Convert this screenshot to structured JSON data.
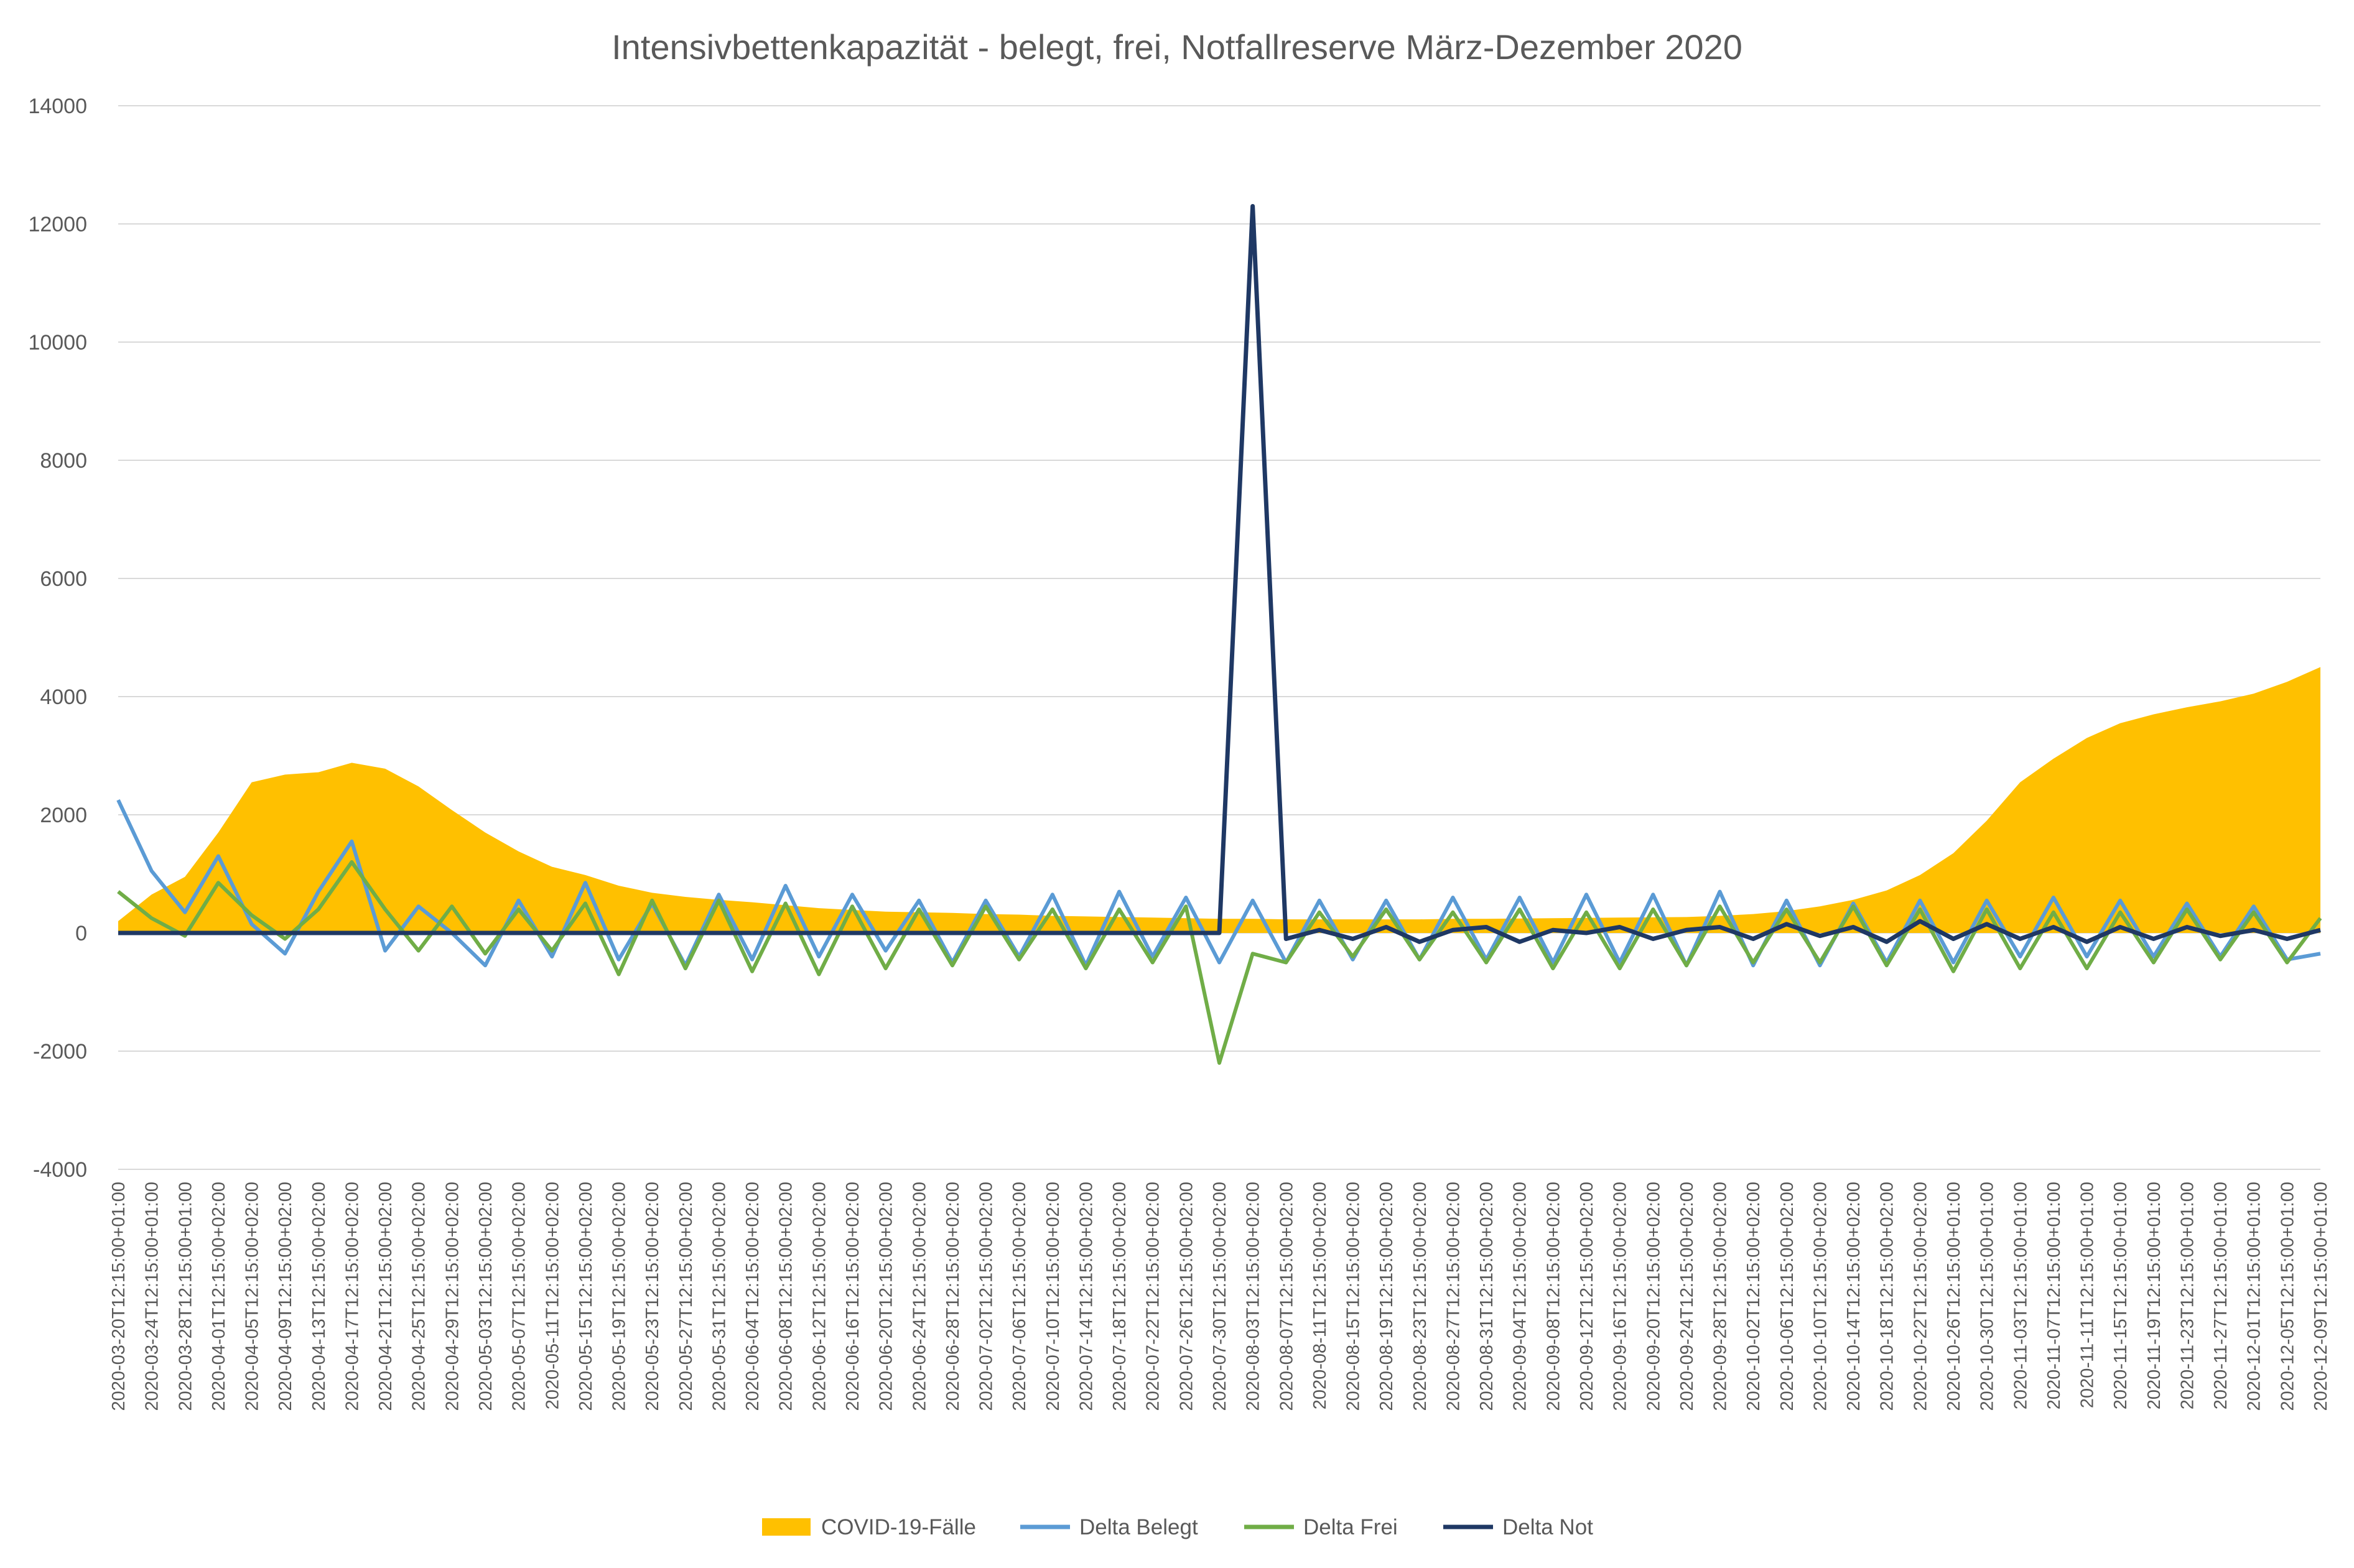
{
  "chart_data": {
    "type": "line",
    "title": "Intensivbettenkapazität - belegt, frei, Notfallreserve März-Dezember 2020",
    "xlabel": "",
    "ylabel": "",
    "ylim": [
      -4000,
      14000
    ],
    "yticks": [
      -4000,
      -2000,
      0,
      2000,
      4000,
      6000,
      8000,
      10000,
      12000,
      14000
    ],
    "ytick_labels": [
      "-4000",
      "-2000",
      "0",
      "2000",
      "4000",
      "6000",
      "8000",
      "10000",
      "12000",
      "14000"
    ],
    "grid": true,
    "legend_position": "bottom",
    "categories": [
      "2020-03-20T12:15:00+01:00",
      "2020-03-24T12:15:00+01:00",
      "2020-03-28T12:15:00+01:00",
      "2020-04-01T12:15:00+02:00",
      "2020-04-05T12:15:00+02:00",
      "2020-04-09T12:15:00+02:00",
      "2020-04-13T12:15:00+02:00",
      "2020-04-17T12:15:00+02:00",
      "2020-04-21T12:15:00+02:00",
      "2020-04-25T12:15:00+02:00",
      "2020-04-29T12:15:00+02:00",
      "2020-05-03T12:15:00+02:00",
      "2020-05-07T12:15:00+02:00",
      "2020-05-11T12:15:00+02:00",
      "2020-05-15T12:15:00+02:00",
      "2020-05-19T12:15:00+02:00",
      "2020-05-23T12:15:00+02:00",
      "2020-05-27T12:15:00+02:00",
      "2020-05-31T12:15:00+02:00",
      "2020-06-04T12:15:00+02:00",
      "2020-06-08T12:15:00+02:00",
      "2020-06-12T12:15:00+02:00",
      "2020-06-16T12:15:00+02:00",
      "2020-06-20T12:15:00+02:00",
      "2020-06-24T12:15:00+02:00",
      "2020-06-28T12:15:00+02:00",
      "2020-07-02T12:15:00+02:00",
      "2020-07-06T12:15:00+02:00",
      "2020-07-10T12:15:00+02:00",
      "2020-07-14T12:15:00+02:00",
      "2020-07-18T12:15:00+02:00",
      "2020-07-22T12:15:00+02:00",
      "2020-07-26T12:15:00+02:00",
      "2020-07-30T12:15:00+02:00",
      "2020-08-03T12:15:00+02:00",
      "2020-08-07T12:15:00+02:00",
      "2020-08-11T12:15:00+02:00",
      "2020-08-15T12:15:00+02:00",
      "2020-08-19T12:15:00+02:00",
      "2020-08-23T12:15:00+02:00",
      "2020-08-27T12:15:00+02:00",
      "2020-08-31T12:15:00+02:00",
      "2020-09-04T12:15:00+02:00",
      "2020-09-08T12:15:00+02:00",
      "2020-09-12T12:15:00+02:00",
      "2020-09-16T12:15:00+02:00",
      "2020-09-20T12:15:00+02:00",
      "2020-09-24T12:15:00+02:00",
      "2020-09-28T12:15:00+02:00",
      "2020-10-02T12:15:00+02:00",
      "2020-10-06T12:15:00+02:00",
      "2020-10-10T12:15:00+02:00",
      "2020-10-14T12:15:00+02:00",
      "2020-10-18T12:15:00+02:00",
      "2020-10-22T12:15:00+02:00",
      "2020-10-26T12:15:00+01:00",
      "2020-10-30T12:15:00+01:00",
      "2020-11-03T12:15:00+01:00",
      "2020-11-07T12:15:00+01:00",
      "2020-11-11T12:15:00+01:00",
      "2020-11-15T12:15:00+01:00",
      "2020-11-19T12:15:00+01:00",
      "2020-11-23T12:15:00+01:00",
      "2020-11-27T12:15:00+01:00",
      "2020-12-01T12:15:00+01:00",
      "2020-12-05T12:15:00+01:00",
      "2020-12-09T12:15:00+01:00"
    ],
    "series": [
      {
        "name": "COVID-19-Fälle",
        "kind": "area",
        "color": "#ffc000",
        "values": [
          200,
          650,
          950,
          1700,
          2550,
          2680,
          2720,
          2880,
          2780,
          2480,
          2080,
          1700,
          1380,
          1120,
          980,
          800,
          680,
          610,
          560,
          520,
          470,
          420,
          390,
          360,
          350,
          340,
          320,
          310,
          290,
          280,
          270,
          260,
          250,
          240,
          240,
          230,
          230,
          230,
          230,
          230,
          240,
          240,
          245,
          250,
          255,
          260,
          265,
          270,
          290,
          320,
          370,
          450,
          560,
          720,
          980,
          1350,
          1900,
          2550,
          2950,
          3300,
          3550,
          3700,
          3820,
          3920,
          4050,
          4250,
          4500
        ]
      },
      {
        "name": "Delta Belegt",
        "kind": "line",
        "color": "#5b9bd5",
        "values": [
          2250,
          1050,
          350,
          1300,
          150,
          -350,
          700,
          1550,
          -300,
          450,
          0,
          -550,
          550,
          -400,
          850,
          -450,
          500,
          -550,
          650,
          -450,
          800,
          -400,
          650,
          -300,
          550,
          -500,
          550,
          -400,
          650,
          -550,
          700,
          -400,
          600,
          -500,
          550,
          -500,
          550,
          -450,
          550,
          -450,
          600,
          -450,
          600,
          -500,
          650,
          -500,
          650,
          -550,
          700,
          -550,
          550,
          -550,
          500,
          -500,
          550,
          -500,
          550,
          -400,
          600,
          -400,
          550,
          -400,
          500,
          -400,
          450,
          -450,
          -350
        ]
      },
      {
        "name": "Delta Frei",
        "kind": "line",
        "color": "#70ad47",
        "values": [
          700,
          250,
          -50,
          850,
          300,
          -100,
          400,
          1200,
          400,
          -300,
          450,
          -350,
          400,
          -300,
          500,
          -700,
          550,
          -600,
          550,
          -650,
          500,
          -700,
          450,
          -600,
          400,
          -550,
          450,
          -450,
          400,
          -600,
          400,
          -500,
          450,
          -2200,
          -350,
          -500,
          350,
          -400,
          400,
          -450,
          350,
          -500,
          400,
          -600,
          350,
          -600,
          400,
          -550,
          450,
          -500,
          400,
          -500,
          450,
          -550,
          400,
          -650,
          400,
          -600,
          350,
          -600,
          350,
          -500,
          400,
          -450,
          350,
          -500,
          250
        ]
      },
      {
        "name": "Delta Not",
        "kind": "line",
        "color": "#1f3864",
        "values": [
          0,
          0,
          0,
          0,
          0,
          0,
          0,
          0,
          0,
          0,
          0,
          0,
          0,
          0,
          0,
          0,
          0,
          0,
          0,
          0,
          0,
          0,
          0,
          0,
          0,
          0,
          0,
          0,
          0,
          0,
          0,
          0,
          0,
          0,
          12300,
          -100,
          50,
          -100,
          100,
          -150,
          50,
          100,
          -150,
          50,
          0,
          100,
          -100,
          50,
          100,
          -100,
          150,
          -50,
          100,
          -150,
          200,
          -100,
          150,
          -100,
          100,
          -150,
          100,
          -100,
          100,
          -50,
          50,
          -100,
          50
        ]
      }
    ]
  }
}
